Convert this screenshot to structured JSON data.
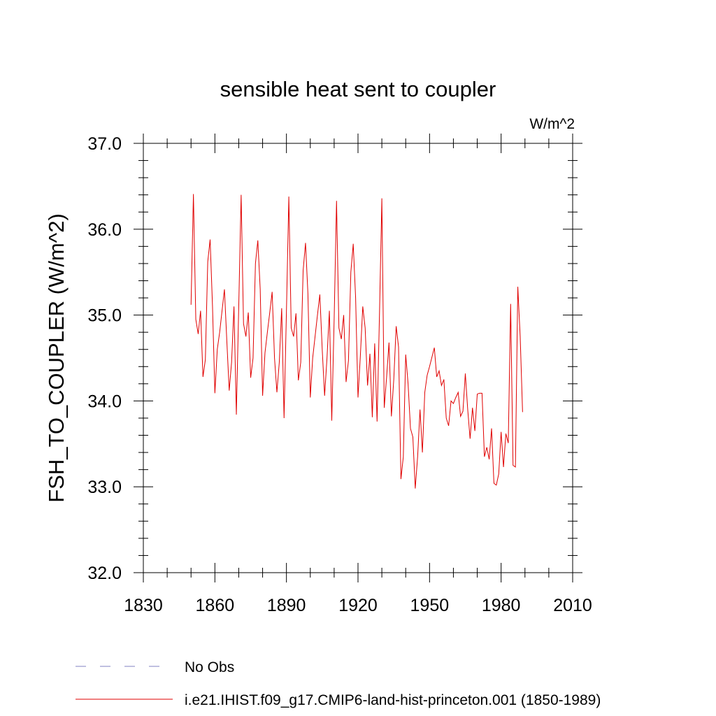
{
  "chart_data": {
    "type": "line",
    "title": "sensible heat sent to coupler",
    "units_label": "W/m^2",
    "ylabel": "FSH_TO_COUPLER  (W/m^2)",
    "xlabel": "",
    "xlim": [
      1830,
      2010
    ],
    "ylim": [
      32.0,
      37.0
    ],
    "xticks": [
      1830,
      1860,
      1890,
      1920,
      1950,
      1980,
      2010
    ],
    "xtick_labels": [
      "1830",
      "1860",
      "1890",
      "1920",
      "1950",
      "1980",
      "2010"
    ],
    "yticks": [
      32.0,
      33.0,
      34.0,
      35.0,
      36.0,
      37.0
    ],
    "ytick_labels": [
      "32.0",
      "33.0",
      "34.0",
      "35.0",
      "36.0",
      "37.0"
    ],
    "grid": false,
    "legend_position": "bottom",
    "legend": [
      {
        "label": "No Obs",
        "color": "#8080c0",
        "style": "dashed"
      },
      {
        "label": "i.e21.IHIST.f09_g17.CMIP6-land-hist-princeton.001 (1850-1989)",
        "color": "#e00000",
        "style": "solid"
      }
    ],
    "series": [
      {
        "color": "#e00000",
        "x": [
          1850,
          1851,
          1852,
          1853,
          1854,
          1855,
          1856,
          1857,
          1858,
          1859,
          1860,
          1861,
          1862,
          1863,
          1864,
          1865,
          1866,
          1867,
          1868,
          1869,
          1870,
          1871,
          1872,
          1873,
          1874,
          1875,
          1876,
          1877,
          1878,
          1879,
          1880,
          1881,
          1882,
          1883,
          1884,
          1885,
          1886,
          1887,
          1888,
          1889,
          1890,
          1891,
          1892,
          1893,
          1894,
          1895,
          1896,
          1897,
          1898,
          1899,
          1900,
          1901,
          1902,
          1903,
          1904,
          1905,
          1906,
          1907,
          1908,
          1909,
          1910,
          1911,
          1912,
          1913,
          1914,
          1915,
          1916,
          1917,
          1918,
          1919,
          1920,
          1921,
          1922,
          1923,
          1924,
          1925,
          1926,
          1927,
          1928,
          1929,
          1930,
          1931,
          1932,
          1933,
          1934,
          1935,
          1936,
          1937,
          1938,
          1939,
          1940,
          1941,
          1942,
          1943,
          1944,
          1945,
          1946,
          1947,
          1948,
          1949,
          1950,
          1951,
          1952,
          1953,
          1954,
          1955,
          1956,
          1957,
          1958,
          1959,
          1960,
          1961,
          1962,
          1963,
          1964,
          1965,
          1966,
          1967,
          1968,
          1969,
          1970,
          1971,
          1972,
          1973,
          1974,
          1975,
          1976,
          1977,
          1978,
          1979,
          1980,
          1981,
          1982,
          1983,
          1984,
          1985,
          1986,
          1987,
          1988,
          1989
        ],
        "y": [
          35.12,
          36.41,
          34.95,
          34.78,
          35.05,
          34.28,
          34.48,
          35.62,
          35.88,
          35.1,
          34.09,
          34.6,
          34.8,
          35.05,
          35.3,
          34.7,
          34.12,
          34.45,
          35.1,
          33.84,
          35.1,
          36.4,
          34.9,
          34.75,
          35.03,
          34.27,
          34.5,
          35.6,
          35.87,
          35.3,
          34.06,
          34.56,
          34.8,
          35.03,
          35.27,
          34.5,
          34.1,
          34.45,
          35.08,
          33.8,
          35.05,
          36.38,
          34.85,
          34.75,
          35.02,
          34.24,
          34.45,
          35.52,
          35.84,
          35.25,
          34.04,
          34.5,
          34.75,
          35.0,
          35.24,
          34.6,
          34.06,
          34.5,
          35.05,
          33.77,
          34.95,
          36.33,
          34.85,
          34.72,
          35.0,
          34.22,
          34.47,
          35.5,
          35.83,
          35.2,
          34.04,
          34.53,
          35.1,
          34.85,
          34.18,
          34.55,
          33.81,
          34.67,
          33.76,
          35.0,
          36.36,
          33.92,
          34.28,
          34.68,
          33.82,
          34.25,
          34.87,
          34.63,
          33.09,
          33.35,
          34.54,
          34.2,
          33.68,
          33.58,
          32.98,
          33.35,
          33.9,
          33.4,
          34.1,
          34.3,
          34.4,
          34.51,
          34.62,
          34.28,
          34.35,
          34.18,
          34.25,
          33.8,
          33.71,
          34.0,
          33.97,
          34.04,
          34.1,
          33.82,
          33.88,
          34.32,
          33.9,
          33.56,
          33.92,
          33.65,
          34.08,
          34.09,
          34.09,
          33.35,
          33.46,
          33.32,
          33.68,
          33.04,
          33.02,
          33.15,
          33.64,
          33.23,
          33.62,
          33.51,
          35.13,
          33.25,
          33.23,
          35.33,
          34.75,
          33.87
        ]
      }
    ]
  }
}
